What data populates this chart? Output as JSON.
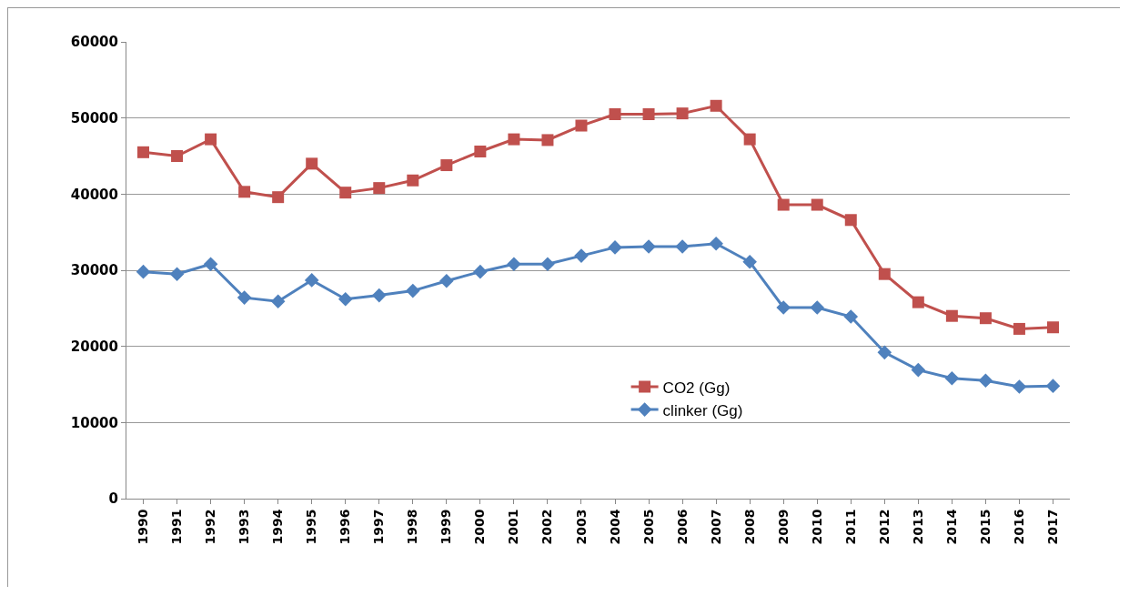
{
  "chart_data": {
    "type": "line",
    "categories": [
      "1990",
      "1991",
      "1992",
      "1993",
      "1994",
      "1995",
      "1996",
      "1997",
      "1998",
      "1999",
      "2000",
      "2001",
      "2002",
      "2003",
      "2004",
      "2005",
      "2006",
      "2007",
      "2008",
      "2009",
      "2010",
      "2011",
      "2012",
      "2013",
      "2014",
      "2015",
      "2016",
      "2017"
    ],
    "series": [
      {
        "name": "CO2 (Gg)",
        "color": "#c0504d",
        "marker": "square",
        "values": [
          45500,
          45000,
          47200,
          40300,
          39600,
          44000,
          40200,
          40800,
          41800,
          43800,
          45600,
          47200,
          47100,
          49000,
          50500,
          50500,
          50600,
          51600,
          47200,
          38600,
          38600,
          36600,
          29500,
          25800,
          24000,
          23700,
          22300,
          22500
        ]
      },
      {
        "name": "clinker (Gg)",
        "color": "#4f81bd",
        "marker": "diamond",
        "values": [
          29800,
          29500,
          30800,
          26400,
          25900,
          28700,
          26200,
          26700,
          27300,
          28600,
          29800,
          30800,
          30800,
          31900,
          33000,
          33100,
          33100,
          33500,
          31100,
          25100,
          25100,
          23900,
          19200,
          16900,
          15800,
          15500,
          14700,
          14800
        ]
      }
    ],
    "ylim": [
      0,
      60000
    ],
    "yticks": [
      0,
      10000,
      20000,
      30000,
      40000,
      50000,
      60000
    ],
    "grid": "y",
    "legend": "bottom"
  }
}
